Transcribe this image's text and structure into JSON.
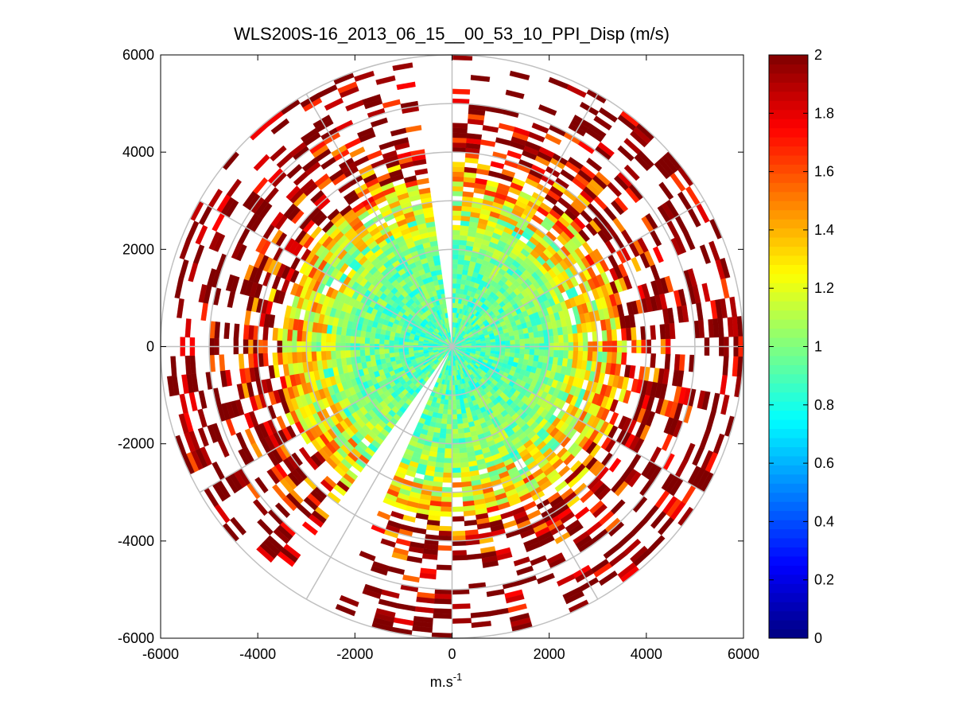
{
  "chart_data": {
    "type": "heatmap",
    "subtype": "polar-ppi",
    "title": "WLS200S-16_2013_06_15__00_53_10_PPI_Disp (m/s)",
    "xlabel_base": "m.s",
    "xlabel_exp": "-1",
    "ylabel": "",
    "xlim": [
      -6000,
      6000
    ],
    "ylim": [
      -6000,
      6000
    ],
    "xticks": [
      -6000,
      -4000,
      -2000,
      0,
      2000,
      4000,
      6000
    ],
    "yticks": [
      6000,
      4000,
      2000,
      0,
      -2000,
      -4000,
      -6000
    ],
    "xtick_labels": [
      "-6000",
      "-4000",
      "-2000",
      "0",
      "2000",
      "4000",
      "6000"
    ],
    "ytick_labels": [
      "6000",
      "4000",
      "2000",
      "0",
      "-2000",
      "-4000",
      "-6000"
    ],
    "polar_grid": {
      "radii": [
        1000,
        2000,
        3000,
        4000,
        5000,
        6000
      ],
      "spoke_angles_deg": [
        0,
        30,
        60,
        90,
        120,
        150,
        180,
        210,
        240,
        270,
        300,
        330
      ]
    },
    "colorbar": {
      "colormap": "jet",
      "clim": [
        0,
        2
      ],
      "ticks": [
        0,
        0.2,
        0.4,
        0.6,
        0.8,
        1,
        1.2,
        1.4,
        1.6,
        1.8,
        2
      ],
      "tick_labels": [
        "0",
        "0.2",
        "0.4",
        "0.6",
        "0.8",
        "1",
        "1.2",
        "1.4",
        "1.6",
        "1.8",
        "2"
      ]
    },
    "data_profile": {
      "range_max_m": 6000,
      "range_gate_m": 100,
      "azimuth_step_deg": 4,
      "description_of_field": "displacement values near 0.8-1.1 m/s within ~2500 m, rising to 1.6-2.0 m/s at long range; sparse coverage beyond ~4000 m",
      "radial_mean_by_range": [
        {
          "range_m": 0,
          "mean": 0.9
        },
        {
          "range_m": 1000,
          "mean": 0.92
        },
        {
          "range_m": 2000,
          "mean": 0.98
        },
        {
          "range_m": 3000,
          "mean": 1.25
        },
        {
          "range_m": 4000,
          "mean": 1.65
        },
        {
          "range_m": 5000,
          "mean": 1.9
        },
        {
          "range_m": 6000,
          "mean": 1.95
        }
      ],
      "gaps_deg_clockwise_from_north": [
        {
          "from": 352,
          "to": 0,
          "start_range_m": 0
        },
        {
          "from": 205,
          "to": 215,
          "start_range_m": 0
        },
        {
          "from": 180,
          "to": 182,
          "start_range_m": 2500
        }
      ]
    }
  }
}
